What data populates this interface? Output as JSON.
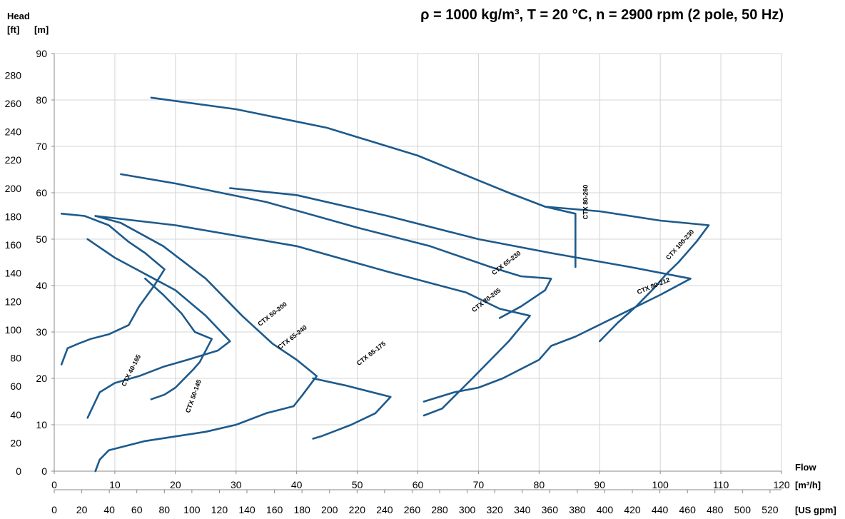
{
  "chart_data": {
    "type": "line",
    "title": "ρ = 1000 kg/m³, T = 20 °C, n = 2900 rpm (2 pole, 50 Hz)",
    "y_axis": {
      "title": "Head",
      "unit_left": "[ft]",
      "unit_right": "[m]",
      "m_range": [
        0,
        90
      ],
      "m_ticks": [
        0,
        10,
        20,
        30,
        40,
        50,
        60,
        70,
        80,
        90
      ],
      "ft_ticks": [
        0,
        20,
        40,
        60,
        80,
        100,
        120,
        140,
        160,
        180,
        200,
        220,
        240,
        260,
        280
      ]
    },
    "x_axis": {
      "title": "Flow",
      "unit_primary": "[m³/h]",
      "unit_secondary": "[US gpm]",
      "m3h_range": [
        0,
        120
      ],
      "m3h_ticks": [
        0,
        10,
        20,
        30,
        40,
        50,
        60,
        70,
        80,
        90,
        100,
        110,
        120
      ],
      "gpm_ticks": [
        0,
        20,
        40,
        60,
        80,
        100,
        120,
        140,
        160,
        180,
        200,
        220,
        240,
        260,
        280,
        300,
        320,
        340,
        360,
        380,
        400,
        420,
        440,
        460,
        480,
        500,
        520
      ]
    },
    "grid": true,
    "line_color": "#1d5a8c",
    "series": [
      {
        "name": "CTX 40-165",
        "label_at": [
          13,
          21.5
        ],
        "label_angle": -63,
        "outline": [
          [
            1.2,
            55.5
          ],
          [
            5,
            55
          ],
          [
            9,
            53
          ],
          [
            12.2,
            49.5
          ],
          [
            15,
            47
          ],
          [
            18.2,
            43.5
          ],
          [
            16.5,
            40
          ],
          [
            14,
            35.5
          ],
          [
            12.3,
            31.5
          ],
          [
            9,
            29.5
          ],
          [
            6,
            28.5
          ],
          [
            4,
            27.5
          ],
          [
            2.2,
            26.5
          ],
          [
            1.2,
            23
          ]
        ]
      },
      {
        "name": "CTX 50-145",
        "label_at": [
          23.3,
          16
        ],
        "label_angle": -70,
        "outline": [
          [
            15,
            41.5
          ],
          [
            18,
            38
          ],
          [
            21,
            34
          ],
          [
            23.2,
            30
          ],
          [
            26,
            28.5
          ],
          [
            24,
            23.5
          ],
          [
            23,
            22
          ],
          [
            20,
            18
          ],
          [
            18.2,
            16.5
          ],
          [
            16,
            15.5
          ]
        ]
      },
      {
        "name": "CTX 50-200",
        "label_at": [
          36.2,
          33.5
        ],
        "label_angle": -38,
        "outline": [
          [
            5.5,
            50
          ],
          [
            10,
            46
          ],
          [
            15,
            42.5
          ],
          [
            20,
            39
          ],
          [
            25,
            33.5
          ],
          [
            29,
            28
          ],
          [
            27,
            26
          ],
          [
            22,
            24
          ],
          [
            18,
            22.5
          ],
          [
            14,
            20.5
          ],
          [
            10,
            19
          ],
          [
            7.5,
            17
          ],
          [
            5.5,
            11.5
          ]
        ]
      },
      {
        "name": "CTX 65-240",
        "label_at": [
          39.5,
          28.5
        ],
        "label_angle": -38,
        "outline": [
          [
            6.8,
            55
          ],
          [
            11,
            53.5
          ],
          [
            18,
            48.5
          ],
          [
            25,
            41.5
          ],
          [
            31,
            33.5
          ],
          [
            36,
            27.5
          ],
          [
            40,
            24
          ],
          [
            43.3,
            20.5
          ],
          [
            41,
            16.5
          ],
          [
            39.5,
            14
          ],
          [
            35,
            12.5
          ],
          [
            30,
            10
          ],
          [
            25,
            8.5
          ],
          [
            20,
            7.5
          ],
          [
            15,
            6.5
          ],
          [
            9,
            4.5
          ],
          [
            7.5,
            2.5
          ],
          [
            6.8,
            0
          ]
        ]
      },
      {
        "name": "CTX 65-175",
        "label_at": [
          52.5,
          25
        ],
        "label_angle": -38,
        "outline": [
          [
            42.7,
            20
          ],
          [
            48,
            18.5
          ],
          [
            55.5,
            16
          ],
          [
            53,
            12.5
          ],
          [
            49,
            10
          ],
          [
            46,
            8.5
          ],
          [
            44,
            7.5
          ],
          [
            42.7,
            7
          ]
        ]
      },
      {
        "name": "CTX 80-205",
        "label_at": [
          71.5,
          36.5
        ],
        "label_angle": -38,
        "outline": [
          [
            6.8,
            55
          ],
          [
            20,
            53
          ],
          [
            40,
            48.5
          ],
          [
            55,
            43
          ],
          [
            68,
            38.5
          ],
          [
            73.5,
            35
          ],
          [
            78.5,
            33.5
          ],
          [
            75,
            28
          ],
          [
            72,
            24
          ],
          [
            69,
            20
          ],
          [
            64,
            13.5
          ],
          [
            61,
            12
          ]
        ]
      },
      {
        "name": "CTX 65-230",
        "label_at": [
          74.8,
          44.5
        ],
        "label_angle": -38,
        "outline": [
          [
            11,
            64
          ],
          [
            20,
            62
          ],
          [
            35,
            58
          ],
          [
            50,
            52.5
          ],
          [
            62,
            48.5
          ],
          [
            72,
            44
          ],
          [
            77,
            42
          ],
          [
            82,
            41.5
          ],
          [
            81,
            39
          ],
          [
            77,
            35.5
          ],
          [
            73.5,
            33
          ]
        ]
      },
      {
        "name": "CTX 80-212",
        "label_at": [
          99,
          39.5
        ],
        "label_angle": -22,
        "outline": [
          [
            29,
            61
          ],
          [
            40,
            59.5
          ],
          [
            55,
            55
          ],
          [
            70,
            50
          ],
          [
            82,
            47
          ],
          [
            95,
            44
          ],
          [
            105,
            41.5
          ],
          [
            100,
            38
          ],
          [
            93,
            33.5
          ],
          [
            86,
            29
          ],
          [
            82,
            27
          ],
          [
            80,
            24
          ],
          [
            74,
            20
          ],
          [
            70,
            18
          ],
          [
            66,
            17
          ],
          [
            61,
            15
          ]
        ]
      },
      {
        "name": "CTX 80-260",
        "label_at": [
          88,
          58
        ],
        "label_angle": -90,
        "outline": [
          [
            16,
            80.5
          ],
          [
            30,
            78
          ],
          [
            45,
            74
          ],
          [
            60,
            68
          ],
          [
            75,
            60
          ],
          [
            81,
            57
          ],
          [
            86,
            55.5
          ],
          [
            86,
            53
          ],
          [
            86,
            50
          ],
          [
            86,
            47
          ],
          [
            86,
            44
          ]
        ]
      },
      {
        "name": "CTX 100-230",
        "label_at": [
          103.5,
          48.5
        ],
        "label_angle": -48,
        "outline": [
          [
            81,
            57
          ],
          [
            90,
            56
          ],
          [
            100,
            54
          ],
          [
            108,
            53
          ],
          [
            106,
            49.5
          ],
          [
            103,
            45
          ],
          [
            101,
            42.5
          ],
          [
            99,
            39.5
          ],
          [
            96,
            35.5
          ],
          [
            93,
            32
          ],
          [
            90,
            28
          ]
        ]
      }
    ]
  }
}
